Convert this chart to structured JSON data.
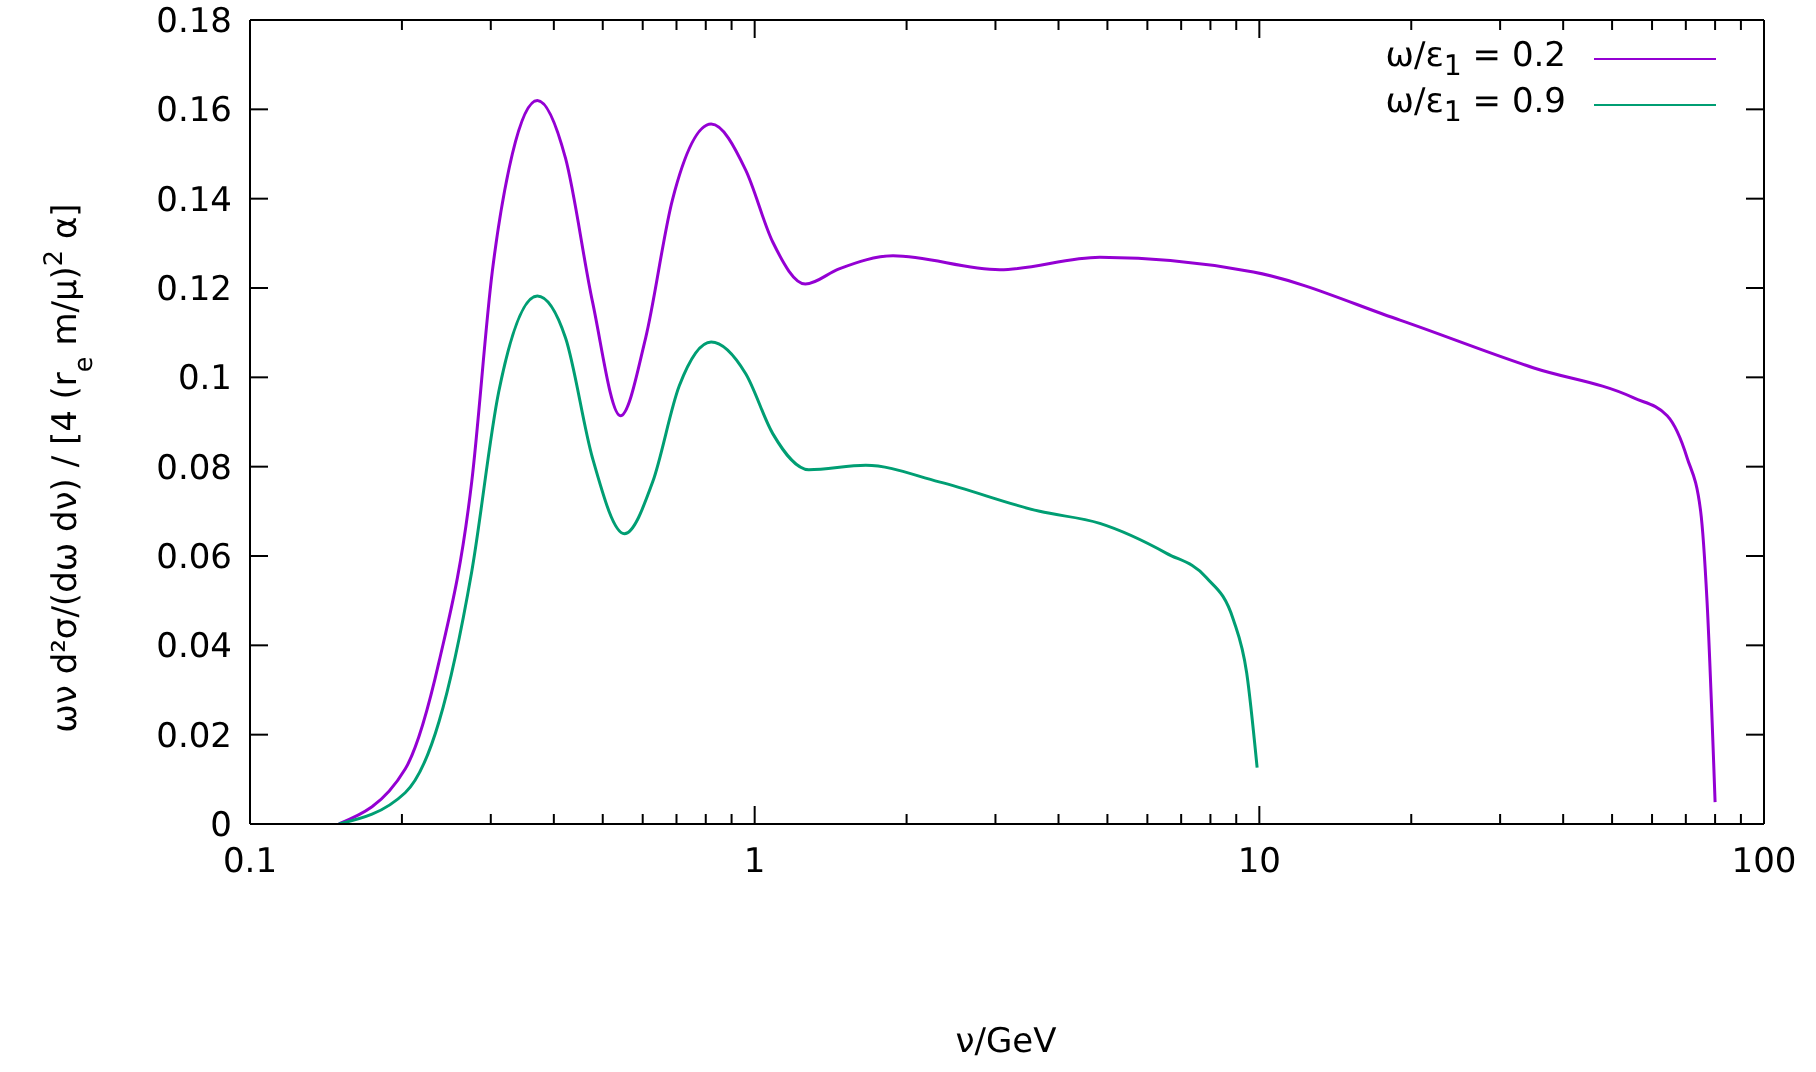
{
  "chart_data": {
    "type": "line",
    "xlabel": "ν/GeV",
    "ylabel": "ων d²σ/(dω dν) / [4 (r$_{e}$ m/μ)$^{2}$ α]",
    "log": "x",
    "legend": "top right",
    "marker": "none",
    "line_style": "solid",
    "xlim": [
      0.1,
      100
    ],
    "ylim": [
      0,
      0.18
    ],
    "xticks": [
      0.1,
      {
        "value": 0.2,
        "label": null
      },
      {
        "value": 0.3,
        "label": null
      },
      {
        "value": 0.4,
        "label": null
      },
      {
        "value": 0.5,
        "label": null
      },
      {
        "value": 0.6,
        "label": null
      },
      {
        "value": 0.7,
        "label": null
      },
      {
        "value": 0.8,
        "label": null
      },
      {
        "value": 0.9,
        "label": null
      },
      1,
      {
        "value": 2,
        "label": null
      },
      {
        "value": 3,
        "label": null
      },
      {
        "value": 4,
        "label": null
      },
      {
        "value": 5,
        "label": null
      },
      {
        "value": 6,
        "label": null
      },
      {
        "value": 7,
        "label": null
      },
      {
        "value": 8,
        "label": null
      },
      {
        "value": 9,
        "label": null
      },
      10,
      {
        "value": 20,
        "label": null
      },
      {
        "value": 30,
        "label": null
      },
      {
        "value": 40,
        "label": null
      },
      {
        "value": 50,
        "label": null
      },
      {
        "value": 60,
        "label": null
      },
      {
        "value": 70,
        "label": null
      },
      {
        "value": 80,
        "label": null
      },
      {
        "value": 90,
        "label": null
      },
      100
    ],
    "yticks": [
      0,
      0.02,
      0.04,
      0.06,
      0.08,
      0.1,
      0.12,
      0.14,
      0.16,
      0.18
    ],
    "series": [
      {
        "name": "ω/ε$_{1}$ = 0.2",
        "color": "#9400d3",
        "x": [
          0.15,
          0.203,
          0.237,
          0.275,
          0.302,
          0.331,
          0.371,
          0.422,
          0.477,
          0.542,
          0.608,
          0.687,
          0.82,
          0.96,
          1.086,
          1.26,
          1.47,
          1.88,
          3.06,
          4.83,
          9.73,
          19.0,
          35.0,
          55.2,
          64.3,
          70.4,
          74.9,
          77.1,
          80.0
        ],
        "values": [
          0,
          0.0123,
          0.0364,
          0.0766,
          0.1236,
          0.15,
          0.162,
          0.149,
          0.117,
          0.0914,
          0.1088,
          0.1397,
          0.1567,
          0.1464,
          0.1303,
          0.1209,
          0.1243,
          0.1272,
          0.1241,
          0.1269,
          0.1236,
          0.1128,
          0.1021,
          0.0954,
          0.0914,
          0.082,
          0.07,
          0.05,
          0.0049
        ]
      },
      {
        "name": "ω/ε$_{1}$ = 0.9",
        "color": "#009e73",
        "x": [
          0.15,
          0.203,
          0.237,
          0.275,
          0.311,
          0.371,
          0.422,
          0.477,
          0.552,
          0.628,
          0.709,
          0.82,
          0.96,
          1.086,
          1.28,
          1.66,
          2.32,
          3.67,
          4.83,
          6.55,
          7.85,
          8.88,
          9.44,
          9.9
        ],
        "values": [
          0,
          0.007,
          0.023,
          0.0565,
          0.0967,
          0.1182,
          0.1088,
          0.082,
          0.065,
          0.0766,
          0.0981,
          0.1079,
          0.1008,
          0.0874,
          0.0793,
          0.0803,
          0.0766,
          0.07,
          0.0673,
          0.0606,
          0.0552,
          0.0458,
          0.0338,
          0.0126
        ]
      }
    ]
  }
}
